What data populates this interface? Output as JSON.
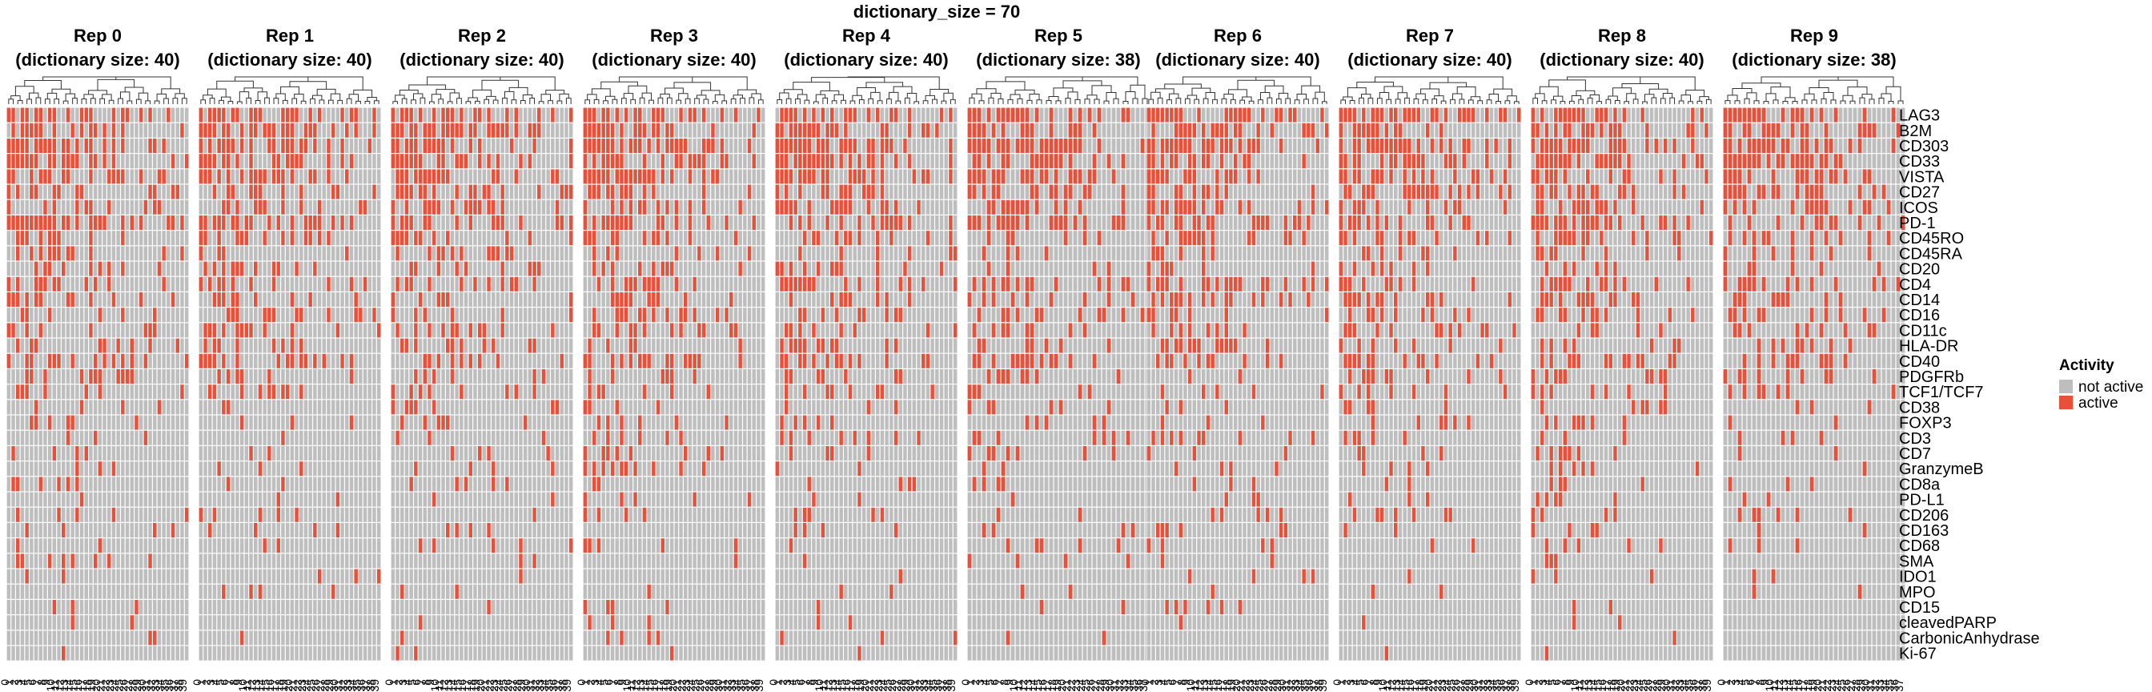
{
  "chart_data": {
    "type": "heatmap",
    "title": "dictionary_size = 70",
    "facets": [
      {
        "label": "Rep 0",
        "sublabel": "(dictionary size: 40)",
        "n_cols": 40
      },
      {
        "label": "Rep 1",
        "sublabel": "(dictionary size: 40)",
        "n_cols": 40
      },
      {
        "label": "Rep 2",
        "sublabel": "(dictionary size: 40)",
        "n_cols": 40
      },
      {
        "label": "Rep 3",
        "sublabel": "(dictionary size: 40)",
        "n_cols": 40
      },
      {
        "label": "Rep 4",
        "sublabel": "(dictionary size: 40)",
        "n_cols": 40
      },
      {
        "label": "Rep 5",
        "sublabel": "(dictionary size: 38)",
        "n_cols": 38
      },
      {
        "label": "Rep 6",
        "sublabel": "(dictionary size: 40)",
        "n_cols": 40
      },
      {
        "label": "Rep 7",
        "sublabel": "(dictionary size: 40)",
        "n_cols": 40
      },
      {
        "label": "Rep 8",
        "sublabel": "(dictionary size: 40)",
        "n_cols": 40
      },
      {
        "label": "Rep 9",
        "sublabel": "(dictionary size: 38)",
        "n_cols": 38
      }
    ],
    "markers": [
      "LAG3",
      "B2M",
      "CD303",
      "CD33",
      "VISTA",
      "CD27",
      "ICOS",
      "PD-1",
      "CD45RO",
      "CD45RA",
      "CD20",
      "CD4",
      "CD14",
      "CD16",
      "CD11c",
      "HLA-DR",
      "CD40",
      "PDGFRb",
      "TCF1/TCF7",
      "CD38",
      "FOXP3",
      "CD3",
      "CD7",
      "GranzymeB",
      "CD8a",
      "PD-L1",
      "CD206",
      "CD163",
      "CD68",
      "SMA",
      "IDO1",
      "MPO",
      "CD15",
      "cleavedPARP",
      "CarbonicAnhydrase",
      "Ki-67"
    ],
    "marker_activity_fraction": [
      0.6,
      0.55,
      0.6,
      0.55,
      0.5,
      0.45,
      0.45,
      0.5,
      0.35,
      0.25,
      0.2,
      0.35,
      0.3,
      0.3,
      0.3,
      0.3,
      0.3,
      0.2,
      0.2,
      0.15,
      0.15,
      0.15,
      0.12,
      0.12,
      0.12,
      0.1,
      0.1,
      0.1,
      0.1,
      0.06,
      0.05,
      0.05,
      0.05,
      0.04,
      0.04,
      0.02
    ],
    "cell_values": {
      "0": "not active",
      "1": "active"
    },
    "legend": {
      "title": "Activity",
      "position": "right",
      "entries": [
        {
          "label": "not active",
          "color": "#bebebe"
        },
        {
          "label": "active",
          "color": "#e8503a"
        }
      ]
    },
    "colors": {
      "not_active": "#bebebe",
      "active": "#e8503a",
      "grid": "#ffffff",
      "dendrogram": "#333333"
    }
  }
}
